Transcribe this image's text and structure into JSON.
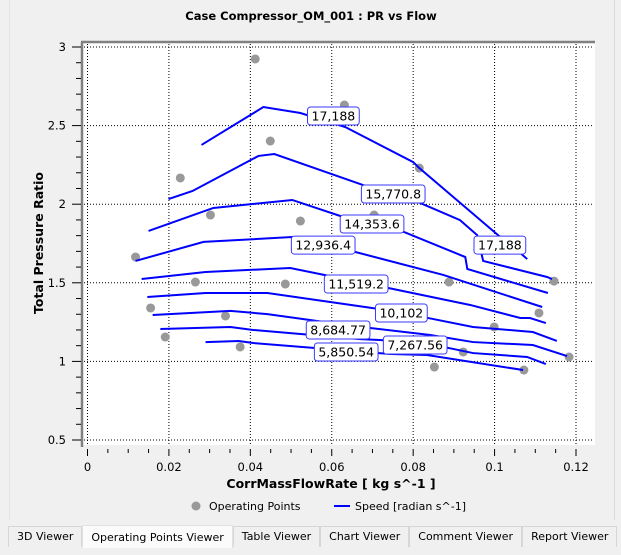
{
  "chart_data": {
    "type": "line",
    "title": "Case Compressor_OM_001 : PR vs Flow",
    "xlabel": "CorrMassFlowRate [ kg s^-1 ]",
    "ylabel": "Total Pressure Ratio",
    "xlim": [
      0,
      0.12
    ],
    "ylim": [
      0.5,
      3
    ],
    "xticks": [
      "0",
      "0.02",
      "0.04",
      "0.06",
      "0.08",
      "0.1",
      "0.12"
    ],
    "xtick_values": [
      0,
      0.02,
      0.04,
      0.06,
      0.08,
      0.1,
      0.12
    ],
    "yticks": [
      "0.5",
      "1",
      "1.5",
      "2",
      "2.5",
      "3"
    ],
    "ytick_values": [
      0.5,
      1,
      1.5,
      2,
      2.5,
      3
    ],
    "grid": true,
    "legend_position": "bottom",
    "legend": [
      "Operating Points",
      "Speed [radian s^-1]"
    ],
    "colors": {
      "points": "#999999",
      "speed": "#0000ff"
    },
    "operating_points": [
      [
        0.0412,
        2.924
      ],
      [
        0.0631,
        2.631
      ],
      [
        0.0449,
        2.402
      ],
      [
        0.0228,
        2.167
      ],
      [
        0.0815,
        2.23
      ],
      [
        0.0302,
        1.931
      ],
      [
        0.0523,
        1.893
      ],
      [
        0.0704,
        1.931
      ],
      [
        0.0118,
        1.664
      ],
      [
        0.0265,
        1.505
      ],
      [
        0.0486,
        1.492
      ],
      [
        0.0888,
        1.505
      ],
      [
        0.1146,
        1.511
      ],
      [
        0.1109,
        1.308
      ],
      [
        0.0155,
        1.34
      ],
      [
        0.0339,
        1.289
      ],
      [
        0.0999,
        1.219
      ],
      [
        0.0191,
        1.155
      ],
      [
        0.0375,
        1.092
      ],
      [
        0.056,
        1.193
      ],
      [
        0.0923,
        1.06
      ],
      [
        0.1183,
        1.028
      ],
      [
        0.0852,
        0.964
      ],
      [
        0.1072,
        0.945
      ]
    ],
    "series": [
      {
        "name": "17,188",
        "labels": [
          [
            0.0604,
            2.561
          ],
          [
            0.1013,
            1.74
          ]
        ],
        "points": [
          [
            0.028,
            2.377
          ],
          [
            0.0432,
            2.618
          ],
          [
            0.0523,
            2.58
          ],
          [
            0.0633,
            2.491
          ],
          [
            0.08,
            2.268
          ],
          [
            0.0815,
            2.23
          ],
          [
            0.1011,
            1.798
          ],
          [
            0.1063,
            1.69
          ],
          [
            0.108,
            1.651
          ]
        ]
      },
      {
        "name": "15,770.8",
        "labels": [
          [
            0.0751,
            2.065
          ]
        ],
        "points": [
          [
            0.0199,
            2.033
          ],
          [
            0.0258,
            2.084
          ],
          [
            0.042,
            2.307
          ],
          [
            0.0459,
            2.319
          ],
          [
            0.0677,
            2.122
          ],
          [
            0.0817,
            2.008
          ],
          [
            0.0915,
            1.899
          ],
          [
            0.0957,
            1.804
          ],
          [
            0.0972,
            1.639
          ],
          [
            0.1129,
            1.537
          ],
          [
            0.1141,
            1.524
          ]
        ]
      },
      {
        "name": "14,353.6",
        "labels": [
          [
            0.0699,
            1.874
          ]
        ],
        "points": [
          [
            0.015,
            1.83
          ],
          [
            0.0309,
            1.976
          ],
          [
            0.0503,
            2.027
          ],
          [
            0.0621,
            1.925
          ],
          [
            0.0778,
            1.823
          ],
          [
            0.0928,
            1.664
          ],
          [
            0.0933,
            1.588
          ],
          [
            0.1131,
            1.435
          ]
        ]
      },
      {
        "name": "12,936.4",
        "labels": [
          [
            0.0579,
            1.74
          ]
        ],
        "points": [
          [
            0.0118,
            1.639
          ],
          [
            0.0285,
            1.76
          ],
          [
            0.0503,
            1.791
          ],
          [
            0.0658,
            1.696
          ],
          [
            0.0874,
            1.55
          ],
          [
            0.1117,
            1.346
          ]
        ]
      },
      {
        "name": "11,519.2",
        "labels": [
          [
            0.066,
            1.492
          ]
        ],
        "points": [
          [
            0.0133,
            1.524
          ],
          [
            0.029,
            1.569
          ],
          [
            0.0498,
            1.594
          ],
          [
            0.0739,
            1.467
          ],
          [
            0.094,
            1.359
          ],
          [
            0.1063,
            1.276
          ],
          [
            0.1087,
            1.276
          ],
          [
            0.1126,
            1.244
          ]
        ]
      },
      {
        "name": "10,102",
        "labels": [
          [
            0.0771,
            1.308
          ]
        ],
        "points": [
          [
            0.0147,
            1.41
          ],
          [
            0.029,
            1.435
          ],
          [
            0.0442,
            1.435
          ],
          [
            0.0699,
            1.34
          ],
          [
            0.0825,
            1.282
          ],
          [
            0.0947,
            1.219
          ],
          [
            0.1094,
            1.187
          ],
          [
            0.1153,
            1.13
          ]
        ]
      },
      {
        "name": "8,684.77",
        "labels": [
          [
            0.0763,
            1.2
          ]
        ],
        "points": [
          [
            0.016,
            1.295
          ],
          [
            0.0351,
            1.321
          ],
          [
            0.0442,
            1.301
          ],
          [
            0.0653,
            1.225
          ],
          [
            0.0842,
            1.168
          ],
          [
            0.0947,
            1.123
          ],
          [
            0.1094,
            1.104
          ],
          [
            0.1178,
            1.034
          ]
        ]
      },
      {
        "name": "7,267.56",
        "labels": [
          [
            0.0746,
            1.104
          ]
        ],
        "points": [
          [
            0.0179,
            1.206
          ],
          [
            0.0351,
            1.219
          ],
          [
            0.0407,
            1.2
          ],
          [
            0.067,
            1.142
          ],
          [
            0.0817,
            1.123
          ],
          [
            0.0947,
            1.053
          ],
          [
            0.108,
            1.028
          ],
          [
            0.1126,
            0.983
          ]
        ]
      },
      {
        "name": "5,850.54",
        "labels": [
          [
            0.0665,
            1.06
          ]
        ],
        "points": [
          [
            0.029,
            1.123
          ],
          [
            0.0371,
            1.13
          ],
          [
            0.0407,
            1.117
          ],
          [
            0.0744,
            1.047
          ],
          [
            0.0834,
            1.041
          ],
          [
            0.107,
            0.945
          ]
        ]
      }
    ]
  },
  "tabs": [
    "3D Viewer",
    "Operating Points Viewer",
    "Table Viewer",
    "Chart Viewer",
    "Comment Viewer",
    "Report Viewer"
  ],
  "active_tab": 1
}
